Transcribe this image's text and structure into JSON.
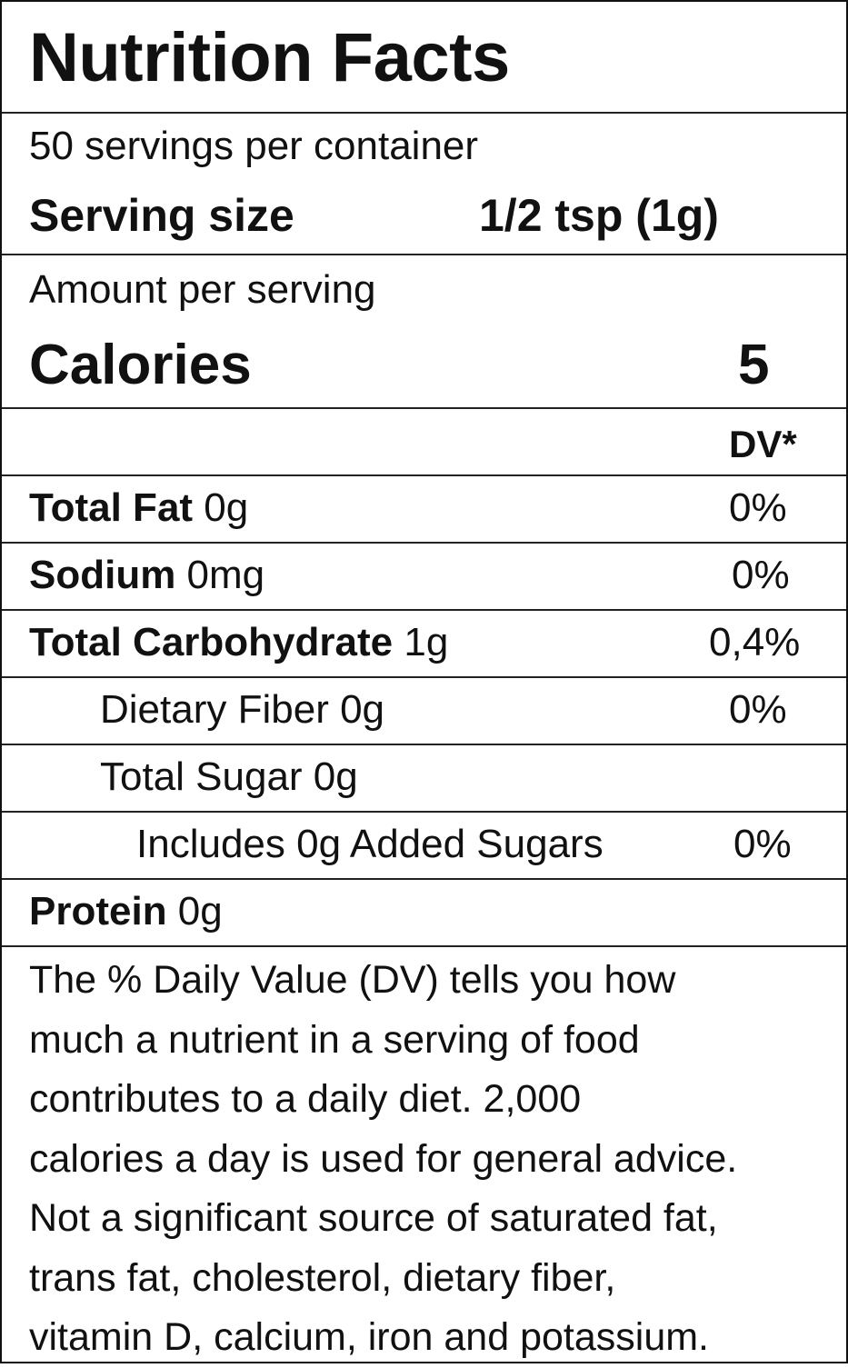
{
  "header": {
    "title": "Nutrition Facts"
  },
  "servings": {
    "per_container": "50 servings per container",
    "size_label": "Serving size",
    "size_value": "1/2 tsp (1g)"
  },
  "calories": {
    "amount_label": "Amount per serving",
    "label": "Calories",
    "value": "5"
  },
  "dv_header": "DV*",
  "nutrients": [
    {
      "name": "Total Fat",
      "amount": " 0g",
      "dv": "0%"
    },
    {
      "name": "Sodium",
      "amount": " 0mg",
      "dv": "0%"
    },
    {
      "name": "Total Carbohydrate",
      "amount": " 1g",
      "dv": "0,4%"
    },
    {
      "name": "",
      "amount": "Dietary Fiber 0g",
      "dv": "0%"
    },
    {
      "name": "",
      "amount": "Total Sugar 0g",
      "dv": ""
    },
    {
      "name": "",
      "amount": "Includes 0g Added Sugars",
      "dv": "0%"
    },
    {
      "name": "Protein",
      "amount": " 0g",
      "dv": ""
    }
  ],
  "footnote": {
    "lines": [
      "The % Daily Value (DV) tells you how",
      "much a nutrient in a serving of food",
      "contributes to a daily diet. 2,000",
      "calories a day is used for general advice.",
      "Not a significant source of saturated fat,",
      "trans fat, cholesterol, dietary fiber,",
      "vitamin D, calcium, iron and potassium."
    ]
  }
}
